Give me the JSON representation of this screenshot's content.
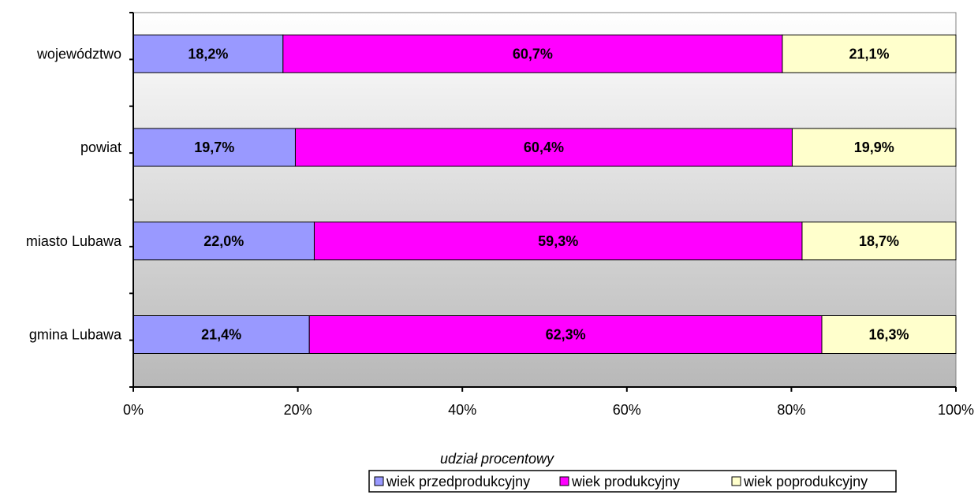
{
  "chart_data": {
    "type": "bar",
    "orientation": "horizontal",
    "stacked": "percent",
    "categories": [
      "województwo",
      "powiat",
      "miasto Lubawa",
      "gmina Lubawa"
    ],
    "series": [
      {
        "name": "wiek przedprodukcyjny",
        "values": [
          18.2,
          19.7,
          22.0,
          21.4
        ],
        "labels": [
          "18,2%",
          "19,7%",
          "22,0%",
          "21,4%"
        ],
        "color": "#9999ff"
      },
      {
        "name": "wiek produkcyjny",
        "values": [
          60.7,
          60.4,
          59.3,
          62.3
        ],
        "labels": [
          "60,7%",
          "60,4%",
          "59,3%",
          "62,3%"
        ],
        "color": "#ff00ff"
      },
      {
        "name": "wiek poprodukcyjny",
        "values": [
          21.1,
          19.9,
          18.7,
          16.3
        ],
        "labels": [
          "21,1%",
          "19,9%",
          "18,7%",
          "16,3%"
        ],
        "color": "#ffffcc"
      }
    ],
    "xlabel": "udział procentowy",
    "ylabel": "",
    "xlim": [
      0,
      100
    ],
    "xticks": [
      "0%",
      "20%",
      "40%",
      "60%",
      "80%",
      "100%"
    ],
    "grid": false,
    "legend_position": "bottom-right",
    "plot_background": "gradient-white-to-gray"
  }
}
